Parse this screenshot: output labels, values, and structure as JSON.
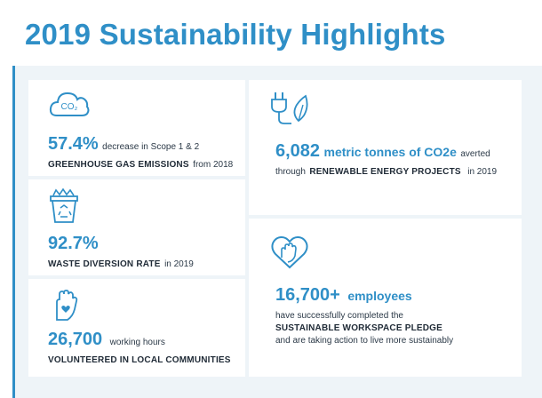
{
  "title": "2019 Sustainability Highlights",
  "colors": {
    "accent": "#2f8fc7",
    "panel": "#eef4f8",
    "text": "#1f2a36"
  },
  "cards": {
    "emissions": {
      "icon": "co2-cloud-icon",
      "icon_text": "CO₂",
      "value": "57.4%",
      "value_desc": "decrease in Scope 1 & 2",
      "bold_line": "GREENHOUSE GAS EMISSIONS",
      "suffix": "from 2018"
    },
    "waste": {
      "icon": "recycling-bin-icon",
      "value": "92.7%",
      "bold_line": "WASTE DIVERSION RATE",
      "suffix": "in 2019"
    },
    "volunteer": {
      "icon": "hand-heart-icon",
      "value": "26,700",
      "value_desc": "working hours",
      "bold_line": "VOLUNTEERED IN LOCAL COMMUNITIES"
    },
    "energy": {
      "icon": "plug-leaf-icon",
      "value": "6,082",
      "value_unit": "metric tonnes of CO2e",
      "value_desc": "averted",
      "prefix": "through",
      "bold_line": "RENEWABLE ENERGY PROJECTS",
      "suffix": "in 2019"
    },
    "employees": {
      "icon": "heart-hand-icon",
      "value": "16,700+",
      "value_unit": "employees",
      "line1": "have successfully completed the",
      "bold_line": "SUSTAINABLE WORKSPACE PLEDGE",
      "line3": "and are taking action to live more sustainably"
    }
  }
}
